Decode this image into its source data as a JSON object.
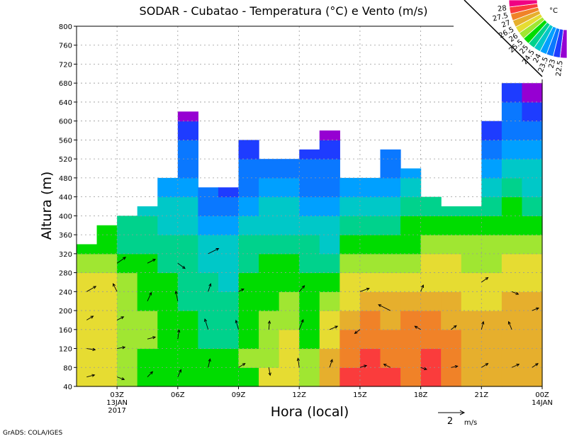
{
  "chart_data": {
    "type": "heatmap",
    "title": "SODAR - Cubatao - Temperatura (°C) e Vento (m/s)",
    "xlabel": "Hora (local)",
    "ylabel": "Altura (m)",
    "xlim": [
      1,
      24
    ],
    "ylim": [
      40,
      800
    ],
    "grid": true,
    "y_ticks": [
      "40",
      "80",
      "120",
      "160",
      "200",
      "240",
      "280",
      "320",
      "360",
      "400",
      "440",
      "480",
      "520",
      "560",
      "600",
      "640",
      "680",
      "720",
      "760",
      "800"
    ],
    "x_ticks": [
      {
        "hour": 3,
        "label": "03Z",
        "sub1": "13JAN",
        "sub2": "2017"
      },
      {
        "hour": 6,
        "label": "06Z"
      },
      {
        "hour": 9,
        "label": "09Z"
      },
      {
        "hour": 12,
        "label": "12Z"
      },
      {
        "hour": 15,
        "label": "15Z"
      },
      {
        "hour": 18,
        "label": "18Z"
      },
      {
        "hour": 21,
        "label": "21Z"
      },
      {
        "hour": 24,
        "label": "00Z",
        "sub1": "14JAN"
      }
    ],
    "legend": {
      "unit": "°C",
      "levels": [
        "22.5",
        "23",
        "23.5",
        "24",
        "24.5",
        "25",
        "25.5",
        "26",
        "26.5",
        "27",
        "27.5",
        "28"
      ],
      "colors": [
        "#9600d2",
        "#1e3cff",
        "#0a78ff",
        "#00a0ff",
        "#00c8c8",
        "#00d28c",
        "#00dc00",
        "#a0e632",
        "#e6dc32",
        "#e6af2d",
        "#f08228",
        "#fa3c3c",
        "#f00082"
      ],
      "placement": "top-right"
    },
    "row_height_m": 40,
    "columns": [
      {
        "start": 1,
        "top": 340,
        "temps": [
          26.4,
          26.3,
          26.2,
          26.1,
          26.3,
          26.2,
          25.6,
          25.3
        ]
      },
      {
        "start": 2,
        "top": 380,
        "temps": [
          26.2,
          26.1,
          26.0,
          26.1,
          26.2,
          26.0,
          25.6,
          25.2,
          25.0
        ]
      },
      {
        "start": 3,
        "top": 400,
        "temps": [
          25.8,
          25.9,
          25.8,
          25.7,
          25.6,
          25.5,
          25.2,
          24.9,
          24.7
        ]
      },
      {
        "start": 4,
        "top": 420,
        "temps": [
          25.3,
          25.4,
          25.5,
          25.6,
          25.4,
          25.2,
          25.0,
          24.8,
          24.6,
          24.4
        ]
      },
      {
        "start": 5,
        "top": 480,
        "temps": [
          25.2,
          25.3,
          25.2,
          25.1,
          25.2,
          25.0,
          24.8,
          24.6,
          24.4,
          24.2,
          23.8
        ]
      },
      {
        "start": 6,
        "top": 620,
        "temps": [
          25.1,
          25.2,
          25.1,
          25.0,
          24.9,
          24.8,
          24.7,
          24.5,
          24.3,
          24.1,
          23.8,
          23.4,
          23.0,
          22.6,
          22.4
        ]
      },
      {
        "start": 7,
        "top": 460,
        "temps": [
          25.2,
          25.0,
          24.9,
          24.8,
          24.7,
          24.5,
          24.3,
          24.1,
          23.8,
          23.4,
          23.0
        ]
      },
      {
        "start": 8,
        "top": 460,
        "temps": [
          25.3,
          25.1,
          24.9,
          24.7,
          24.5,
          24.3,
          24.2,
          24.0,
          23.7,
          23.3,
          22.8
        ]
      },
      {
        "start": 9,
        "top": 560,
        "temps": [
          25.4,
          25.5,
          25.3,
          25.2,
          25.1,
          25.0,
          24.8,
          24.5,
          24.2,
          23.8,
          23.4,
          23.0,
          22.9
        ]
      },
      {
        "start": 10,
        "top": 520,
        "temps": [
          26.0,
          25.8,
          25.6,
          25.5,
          25.4,
          25.3,
          25.1,
          24.8,
          24.4,
          24.0,
          23.6,
          23.2
        ]
      },
      {
        "start": 11,
        "top": 520,
        "temps": [
          26.3,
          26.2,
          26.0,
          25.7,
          25.5,
          25.3,
          25.1,
          24.8,
          24.4,
          24.0,
          23.6,
          23.3
        ]
      },
      {
        "start": 12,
        "top": 540,
        "temps": [
          25.6,
          25.5,
          25.4,
          25.3,
          25.2,
          25.1,
          24.9,
          24.6,
          24.3,
          23.9,
          23.4,
          23.0,
          22.8
        ]
      },
      {
        "start": 13,
        "top": 580,
        "temps": [
          26.6,
          26.5,
          26.4,
          26.0,
          25.6,
          25.2,
          24.8,
          24.4,
          24.0,
          23.7,
          23.4,
          23.0,
          22.6,
          22.3
        ]
      },
      {
        "start": 14,
        "top": 480,
        "temps": [
          27.6,
          27.4,
          27.2,
          26.8,
          26.4,
          26.0,
          25.6,
          25.1,
          24.6,
          24.2,
          23.8
        ]
      },
      {
        "start": 15,
        "top": 480,
        "temps": [
          27.7,
          27.6,
          27.3,
          27.0,
          26.6,
          26.2,
          25.8,
          25.3,
          24.8,
          24.3,
          23.9
        ]
      },
      {
        "start": 16,
        "top": 540,
        "temps": [
          27.5,
          27.4,
          27.2,
          26.9,
          26.5,
          26.0,
          25.5,
          25.0,
          24.6,
          24.2,
          23.8,
          23.4,
          23.2
        ]
      },
      {
        "start": 17,
        "top": 500,
        "temps": [
          27.3,
          27.4,
          27.4,
          27.2,
          26.8,
          26.2,
          25.8,
          25.4,
          25.0,
          24.6,
          24.2,
          23.8
        ]
      },
      {
        "start": 18,
        "top": 440,
        "temps": [
          27.8,
          27.6,
          27.4,
          27.2,
          26.8,
          26.4,
          26.0,
          25.6,
          25.2,
          24.8
        ]
      },
      {
        "start": 19,
        "top": 420,
        "temps": [
          27.2,
          27.1,
          27.0,
          26.8,
          26.6,
          26.4,
          26.2,
          25.8,
          25.4,
          24.9
        ]
      },
      {
        "start": 20,
        "top": 420,
        "temps": [
          26.8,
          26.7,
          26.6,
          26.5,
          26.3,
          26.1,
          25.9,
          25.6,
          25.2,
          24.8
        ]
      },
      {
        "start": 21,
        "top": 600,
        "temps": [
          26.8,
          26.7,
          26.6,
          26.5,
          26.4,
          26.1,
          25.8,
          25.5,
          25.1,
          24.7,
          24.2,
          23.8,
          23.3,
          22.9
        ]
      },
      {
        "start": 22,
        "top": 680,
        "temps": [
          26.9,
          26.9,
          26.8,
          26.7,
          26.6,
          26.4,
          26.2,
          25.8,
          25.4,
          25.0,
          24.6,
          24.2,
          23.8,
          23.4,
          23.0,
          22.7
        ]
      },
      {
        "start": 23,
        "top": 680,
        "temps": [
          26.9,
          26.9,
          26.8,
          26.7,
          26.5,
          26.3,
          26.0,
          25.6,
          25.2,
          24.8,
          24.4,
          24.0,
          23.6,
          23.2,
          22.8,
          22.4
        ]
      }
    ],
    "wind": [
      [
        1.5,
        60,
        1.2,
        0.3
      ],
      [
        1.5,
        120,
        1.3,
        -0.2
      ],
      [
        1.5,
        180,
        1.0,
        0.6
      ],
      [
        1.5,
        240,
        1.4,
        0.8
      ],
      [
        3,
        60,
        1.1,
        -0.4
      ],
      [
        3,
        120,
        1.2,
        0.2
      ],
      [
        3,
        180,
        1.0,
        0.5
      ],
      [
        3,
        240,
        -0.6,
        1.2
      ],
      [
        3,
        300,
        1.3,
        0.9
      ],
      [
        4.5,
        60,
        0.8,
        0.8
      ],
      [
        4.5,
        140,
        1.2,
        0.3
      ],
      [
        4.5,
        220,
        0.6,
        1.3
      ],
      [
        4.5,
        300,
        1.2,
        0.6
      ],
      [
        6,
        60,
        0.5,
        1.1
      ],
      [
        6,
        140,
        0.2,
        1.4
      ],
      [
        6,
        220,
        -0.3,
        1.5
      ],
      [
        6,
        300,
        1.1,
        -0.8
      ],
      [
        7.5,
        80,
        0.3,
        1.3
      ],
      [
        7.5,
        160,
        -0.5,
        1.6
      ],
      [
        7.5,
        240,
        0.4,
        1.2
      ],
      [
        7.5,
        320,
        1.6,
        0.8
      ],
      [
        9,
        80,
        1.0,
        0.6
      ],
      [
        9,
        160,
        -0.4,
        1.4
      ],
      [
        9,
        240,
        0.8,
        0.4
      ],
      [
        10.5,
        80,
        0.2,
        -1.2
      ],
      [
        10.5,
        160,
        0.1,
        1.3
      ],
      [
        12,
        80,
        -0.2,
        1.4
      ],
      [
        12,
        160,
        0.6,
        1.5
      ],
      [
        12,
        240,
        0.8,
        0.9
      ],
      [
        13.5,
        80,
        0.4,
        1.2
      ],
      [
        13.5,
        160,
        1.2,
        0.5
      ],
      [
        15,
        80,
        1.0,
        0.3
      ],
      [
        15,
        160,
        -0.8,
        -0.6
      ],
      [
        15,
        240,
        1.4,
        0.5
      ],
      [
        16.5,
        80,
        -1.0,
        0.5
      ],
      [
        16.5,
        200,
        -1.8,
        0.9
      ],
      [
        18,
        80,
        0.9,
        -0.3
      ],
      [
        18,
        160,
        -0.9,
        0.5
      ],
      [
        18,
        240,
        0.4,
        1.0
      ],
      [
        19.5,
        80,
        1.0,
        0.2
      ],
      [
        19.5,
        160,
        0.8,
        0.6
      ],
      [
        21,
        80,
        1.0,
        0.6
      ],
      [
        21,
        160,
        0.3,
        1.2
      ],
      [
        21,
        260,
        1.0,
        0.7
      ],
      [
        22.5,
        80,
        1.1,
        0.5
      ],
      [
        22.5,
        160,
        -0.5,
        1.2
      ],
      [
        22.5,
        240,
        1.0,
        -0.4
      ],
      [
        23.5,
        80,
        0.9,
        0.6
      ],
      [
        23.5,
        200,
        1.0,
        0.4
      ]
    ],
    "wind_reference": {
      "value": 2,
      "label": "2",
      "unit": "m/s"
    }
  },
  "footer": {
    "credit": "GrADS: COLA/IGES"
  }
}
